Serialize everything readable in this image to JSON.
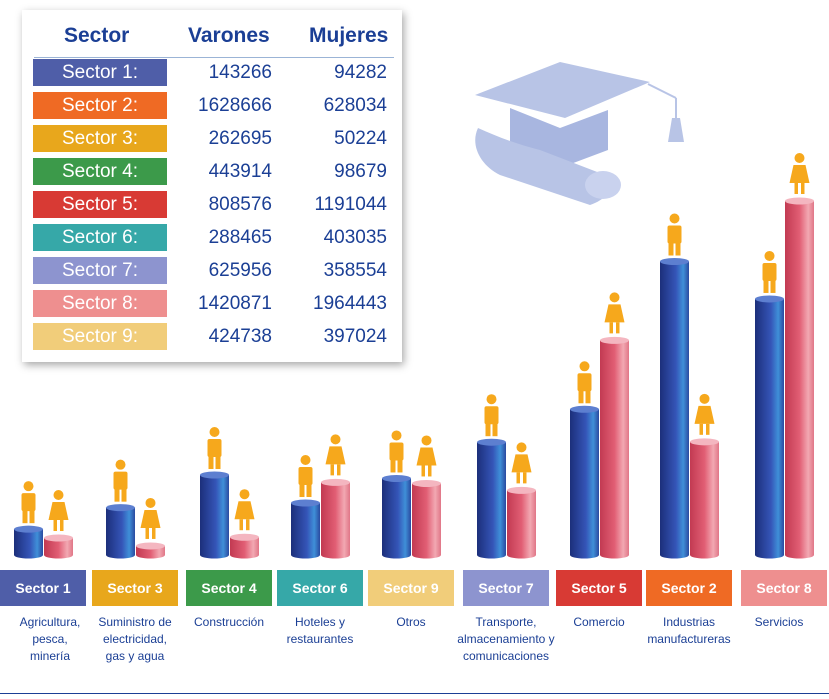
{
  "table": {
    "headers": {
      "sector": "Sector",
      "varones": "Varones",
      "mujeres": "Mujeres"
    },
    "rows": [
      {
        "label": "Sector 1:",
        "varones": "143266",
        "mujeres": "94282",
        "color": "#4f5ea8"
      },
      {
        "label": "Sector 2:",
        "varones": "1628666",
        "mujeres": "628034",
        "color": "#ef6a24"
      },
      {
        "label": "Sector 3:",
        "varones": "262695",
        "mujeres": "50224",
        "color": "#e8a71c"
      },
      {
        "label": "Sector 4:",
        "varones": "443914",
        "mujeres": "98679",
        "color": "#3c9a4a"
      },
      {
        "label": "Sector 5:",
        "varones": "808576",
        "mujeres": "1191044",
        "color": "#d83a34"
      },
      {
        "label": "Sector 6:",
        "varones": "288465",
        "mujeres": "403035",
        "color": "#36a8a8"
      },
      {
        "label": "Sector 7:",
        "varones": "625956",
        "mujeres": "358554",
        "color": "#8d94cf"
      },
      {
        "label": "Sector 8:",
        "varones": "1420871",
        "mujeres": "1964443",
        "color": "#ee8f8f"
      },
      {
        "label": "Sector 9:",
        "varones": "424738",
        "mujeres": "397024",
        "color": "#f1cd7a"
      }
    ]
  },
  "categories": [
    {
      "label": "Sector 1",
      "desc": "Agricultura,\npesca,\nminería",
      "color": "#4f5ea8"
    },
    {
      "label": "Sector 3",
      "desc": "Suministro de\nelectricidad,\ngas y agua",
      "color": "#e8a71c"
    },
    {
      "label": "Sector 4",
      "desc": "Construcción",
      "color": "#3c9a4a"
    },
    {
      "label": "Sector 6",
      "desc": "Hoteles y\nrestaurantes",
      "color": "#36a8a8"
    },
    {
      "label": "Sector 9",
      "desc": "Otros",
      "color": "#f1cd7a"
    },
    {
      "label": "Sector 7",
      "desc": "Transporte,\nalmacenamiento y\ncomunicaciones",
      "color": "#8d94cf"
    },
    {
      "label": "Sector 5",
      "desc": "Comercio",
      "color": "#d83a34"
    },
    {
      "label": "Sector 2",
      "desc": "Industrias\nmanufactureras",
      "color": "#ef6a24"
    },
    {
      "label": "Sector 8",
      "desc": "Servicios",
      "color": "#ee8f8f"
    }
  ],
  "colors": {
    "male_bar": "#2f48a8",
    "female_bar": "#d94b63",
    "figure": "#f6a81c",
    "text": "#1b3f95"
  },
  "icons": {
    "decoration": "graduation-cap-icon",
    "male": "man-icon",
    "female": "woman-icon"
  },
  "chart_data": {
    "type": "bar",
    "categories": [
      "Sector 1",
      "Sector 3",
      "Sector 4",
      "Sector 6",
      "Sector 9",
      "Sector 7",
      "Sector 5",
      "Sector 2",
      "Sector 8"
    ],
    "series": [
      {
        "name": "Varones",
        "values": [
          143266,
          262695,
          443914,
          288465,
          424738,
          625956,
          808576,
          1628666,
          1420871
        ]
      },
      {
        "name": "Mujeres",
        "values": [
          94282,
          50224,
          98679,
          403035,
          397024,
          358554,
          1191044,
          628034,
          1964443
        ]
      }
    ],
    "title": "",
    "xlabel": "",
    "ylabel": "",
    "grid": false
  }
}
